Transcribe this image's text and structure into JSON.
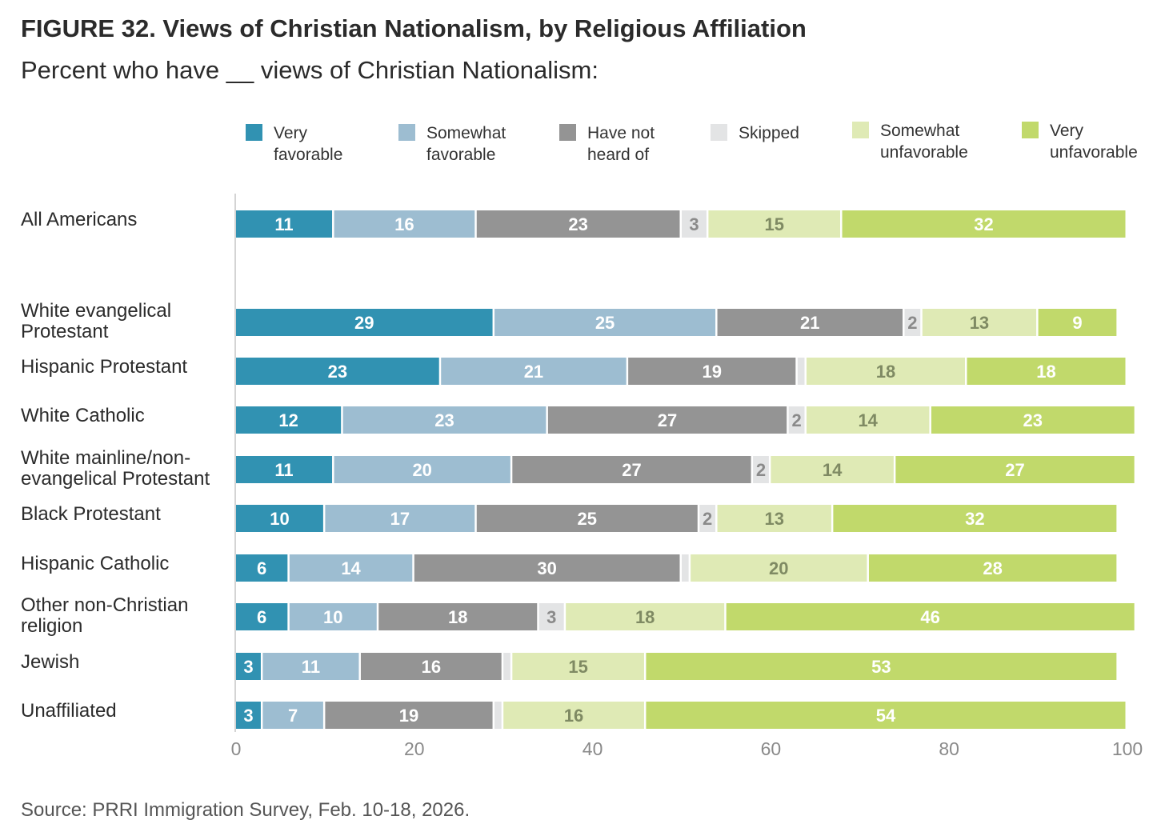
{
  "title": "FIGURE 32. Views of Christian Nationalism, by Religious Affiliation",
  "subtitle": "Percent who have __ views of Christian Nationalism:",
  "source": "Source: PRRI Immigration Survey, Feb. 10-18, 2026.",
  "chart_data": {
    "type": "bar",
    "orientation": "horizontal-stacked",
    "xlim": [
      0,
      100
    ],
    "xticks": [
      "0",
      "20",
      "40",
      "60",
      "80",
      "100"
    ],
    "grid": false,
    "legend_position": "top",
    "categories": [
      "All Americans",
      "White evangelical Protestant",
      "Hispanic Protestant",
      "White Catholic",
      "White mainline/non-evangelical Protestant",
      "Black Protestant",
      "Hispanic Catholic",
      "Other non-Christian religion",
      "Jewish",
      "Unaffiliated"
    ],
    "category_lines": [
      [
        "All Americans"
      ],
      [
        "White evangelical",
        "Protestant"
      ],
      [
        "Hispanic Protestant"
      ],
      [
        "White Catholic"
      ],
      [
        "White mainline/non-",
        "evangelical Protestant"
      ],
      [
        "Black Protestant"
      ],
      [
        "Hispanic Catholic"
      ],
      [
        "Other non-Christian",
        "religion"
      ],
      [
        "Jewish"
      ],
      [
        "Unaffiliated"
      ]
    ],
    "series": [
      {
        "name": "Very favorable",
        "legend_lines": [
          "Very",
          "favorable"
        ],
        "color": "#3192b2",
        "label_color": "#ffffff",
        "values": [
          11,
          29,
          23,
          12,
          11,
          10,
          6,
          6,
          3,
          3
        ],
        "labels": [
          "11",
          "29",
          "23",
          "12",
          "11",
          "10",
          "6",
          "6",
          "3",
          "3"
        ]
      },
      {
        "name": "Somewhat favorable",
        "legend_lines": [
          "Somewhat",
          "favorable"
        ],
        "color": "#9dbdd1",
        "label_color": "#ffffff",
        "values": [
          16,
          25,
          21,
          23,
          20,
          17,
          14,
          10,
          11,
          7
        ],
        "labels": [
          "16",
          "25",
          "21",
          "23",
          "20",
          "17",
          "14",
          "10",
          "11",
          "7"
        ]
      },
      {
        "name": "Have not heard of",
        "legend_lines": [
          "Have not",
          "heard of"
        ],
        "color": "#949494",
        "label_color": "#ffffff",
        "values": [
          23,
          21,
          19,
          27,
          27,
          25,
          30,
          18,
          16,
          19
        ],
        "labels": [
          "23",
          "21",
          "19",
          "27",
          "27",
          "25",
          "30",
          "18",
          "16",
          "19"
        ]
      },
      {
        "name": "Skipped",
        "legend_lines": [
          "Skipped"
        ],
        "color": "#e3e4e5",
        "label_color": "#8a8a8a",
        "values": [
          3,
          2,
          1,
          2,
          2,
          2,
          1,
          3,
          1,
          1
        ],
        "labels": [
          "3",
          "2",
          "",
          "2",
          "2",
          "2",
          "",
          "3",
          "",
          ""
        ]
      },
      {
        "name": "Somewhat unfavorable",
        "legend_lines": [
          "Somewhat",
          "unfavorable"
        ],
        "color": "#dfeab5",
        "label_color": "#7f8a63",
        "values": [
          15,
          13,
          18,
          14,
          14,
          13,
          20,
          18,
          15,
          16
        ],
        "labels": [
          "15",
          "13",
          "18",
          "14",
          "14",
          "13",
          "20",
          "18",
          "15",
          "16"
        ]
      },
      {
        "name": "Very unfavorable",
        "legend_lines": [
          "Very",
          "unfavorable"
        ],
        "color": "#c1d96b",
        "label_color": "#ffffff",
        "values": [
          32,
          9,
          18,
          23,
          27,
          32,
          28,
          46,
          53,
          54
        ],
        "labels": [
          "32",
          "9",
          "18",
          "23",
          "27",
          "32",
          "28",
          "46",
          "53",
          "54"
        ]
      }
    ]
  }
}
